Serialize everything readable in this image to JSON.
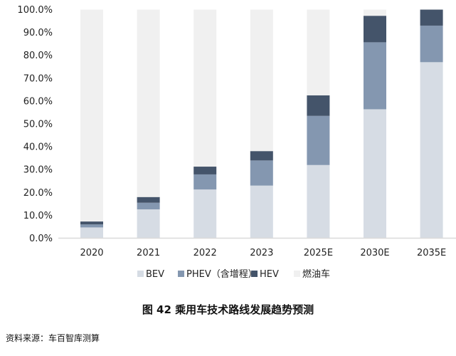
{
  "chart_data": {
    "type": "bar",
    "stacked": true,
    "title": "图 42  乘用车技术路线发展趋势预测",
    "xlabel": "",
    "ylabel": "",
    "ylim": [
      0,
      100
    ],
    "yticks": [
      "0.0%",
      "10.0%",
      "20.0%",
      "30.0%",
      "40.0%",
      "50.0%",
      "60.0%",
      "70.0%",
      "80.0%",
      "90.0%",
      "100.0%"
    ],
    "grid": false,
    "legend_position": "bottom",
    "categories": [
      "2020",
      "2021",
      "2022",
      "2023",
      "2025E",
      "2030E",
      "2035E"
    ],
    "series": [
      {
        "name": "BEV",
        "color": "#d6dce4",
        "values": [
          4.7,
          12.6,
          21.3,
          23.0,
          32.0,
          56.4,
          77.0
        ]
      },
      {
        "name": "PHEV（含增程）",
        "color": "#8497b0",
        "values": [
          1.3,
          2.9,
          6.6,
          11.0,
          21.5,
          29.3,
          16.0
        ]
      },
      {
        "name": "HEV",
        "color": "#44546a",
        "values": [
          1.3,
          2.5,
          3.4,
          4.1,
          9.0,
          11.6,
          7.0
        ]
      },
      {
        "name": "燃油车",
        "color": "#f0f0f0",
        "values": [
          92.7,
          82.0,
          68.7,
          61.9,
          37.5,
          2.7,
          0.0
        ]
      }
    ]
  },
  "source": "资料来源：车百智库测算"
}
